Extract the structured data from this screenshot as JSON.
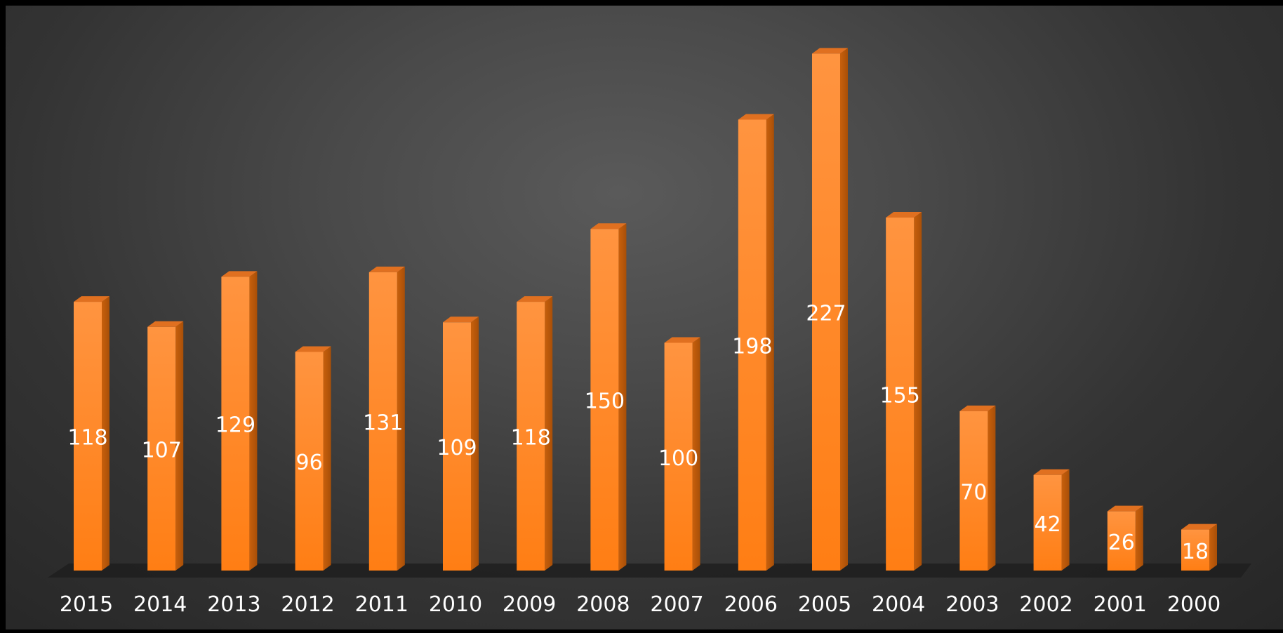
{
  "colors": {
    "bar_front_top": "#ff9440",
    "bar_front_bottom": "#ff7e14",
    "bar_side": "#c8600c",
    "bar_side_dark": "#a84f08",
    "bar_top": "#e07020",
    "floor": "#1e1e1e",
    "label_text": "#ffffff"
  },
  "chart_data": {
    "type": "bar",
    "style": "3d-column",
    "title": "",
    "xlabel": "",
    "ylabel": "",
    "categories": [
      "2015",
      "2014",
      "2013",
      "2012",
      "2011",
      "2010",
      "2009",
      "2008",
      "2007",
      "2006",
      "2005",
      "2004",
      "2003",
      "2002",
      "2001",
      "2000"
    ],
    "values": [
      118,
      107,
      129,
      96,
      131,
      109,
      118,
      150,
      100,
      198,
      227,
      155,
      70,
      42,
      26,
      18
    ],
    "data_labels": [
      "118",
      "107",
      "129",
      "96",
      "131",
      "109",
      "118",
      "150",
      "100",
      "198",
      "227",
      "155",
      "70",
      "42",
      "26",
      "18"
    ],
    "grid": false,
    "legend": "none"
  }
}
